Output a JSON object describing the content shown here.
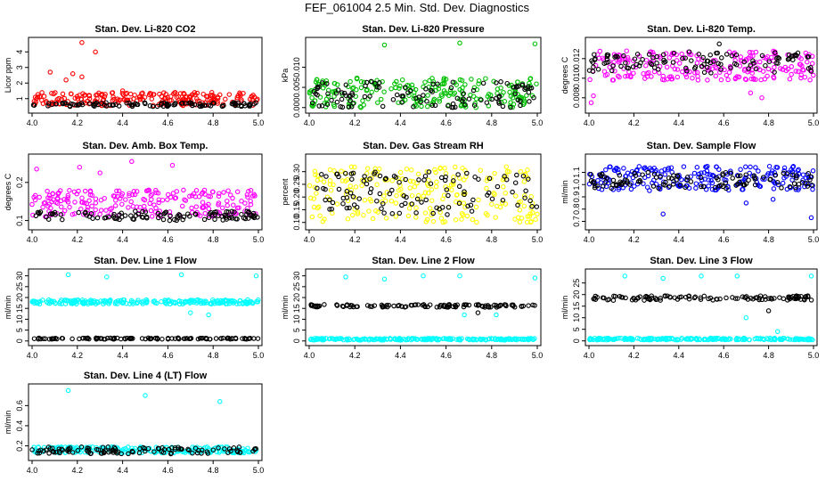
{
  "page": {
    "title": "FEF_061004  2.5 Min. Std. Dev. Diagnostics"
  },
  "chart_data": [
    {
      "type": "scatter",
      "title": "Stan. Dev. Li-820 CO2",
      "ylabel": "Licor ppm",
      "xlim": [
        4.0,
        5.0
      ],
      "ylim": [
        0.3,
        4.7
      ],
      "xticks": [
        "4.0",
        "4.2",
        "4.4",
        "4.6",
        "4.8",
        "5.0"
      ],
      "yticks": [
        1,
        2,
        3,
        4
      ],
      "series": [
        {
          "color": "#ff0000",
          "band": [
            0.55,
            1.4
          ],
          "outliers": [
            [
              4.22,
              4.6
            ],
            [
              4.08,
              2.7
            ],
            [
              4.18,
              2.6
            ],
            [
              4.22,
              2.4
            ],
            [
              4.28,
              4.0
            ],
            [
              4.15,
              2.2
            ],
            [
              4.4,
              1.5
            ]
          ]
        },
        {
          "color": "#000000",
          "band": [
            0.5,
            0.75
          ],
          "outliers": []
        }
      ]
    },
    {
      "type": "scatter",
      "title": "Stan. Dev. Li-820 Pressure",
      "ylabel": "kPa",
      "xlim": [
        4.0,
        5.0
      ],
      "ylim": [
        -0.0005,
        0.0165
      ],
      "xticks": [
        "4.0",
        "4.2",
        "4.4",
        "4.6",
        "4.8",
        "5.0"
      ],
      "yticks": [
        0.0,
        0.005,
        0.01
      ],
      "series": [
        {
          "color": "#00c000",
          "band": [
            0.0,
            0.0075
          ],
          "outliers": [
            [
              4.33,
              0.0155
            ],
            [
              4.66,
              0.016
            ],
            [
              4.99,
              0.0158
            ]
          ]
        },
        {
          "color": "#000000",
          "band": [
            0.0,
            0.0065
          ],
          "outliers": []
        }
      ]
    },
    {
      "type": "scatter",
      "title": "Stan. Dev. Li-820 Temp.",
      "ylabel": "degrees C",
      "xlim": [
        4.0,
        5.0
      ],
      "ylim": [
        0.0068,
        0.0138
      ],
      "xticks": [
        "4.0",
        "4.2",
        "4.4",
        "4.6",
        "4.8",
        "5.0"
      ],
      "yticks": [
        0.008,
        0.01,
        0.012
      ],
      "series": [
        {
          "color": "#ff00ff",
          "band": [
            0.0098,
            0.0128
          ],
          "outliers": [
            [
              4.01,
              0.0075
            ],
            [
              4.02,
              0.0082
            ],
            [
              4.72,
              0.0085
            ],
            [
              4.77,
              0.008
            ]
          ]
        },
        {
          "color": "#000000",
          "band": [
            0.0105,
            0.0127
          ],
          "outliers": [
            [
              4.58,
              0.0135
            ]
          ]
        }
      ]
    },
    {
      "type": "scatter",
      "title": "Stan. Dev. Amb. Box Temp.",
      "ylabel": "degrees C",
      "xlim": [
        4.0,
        5.0
      ],
      "ylim": [
        0.085,
        0.265
      ],
      "xticks": [
        "4.0",
        "4.2",
        "4.4",
        "4.6",
        "4.8",
        "5.0"
      ],
      "yticks": [
        0.1,
        0.2
      ],
      "series": [
        {
          "color": "#ff00ff",
          "band": [
            0.11,
            0.18
          ],
          "outliers": [
            [
              4.44,
              0.255
            ],
            [
              4.21,
              0.24
            ],
            [
              4.62,
              0.245
            ],
            [
              4.02,
              0.235
            ],
            [
              4.3,
              0.225
            ]
          ]
        },
        {
          "color": "#000000",
          "band": [
            0.1,
            0.125
          ],
          "outliers": []
        }
      ]
    },
    {
      "type": "scatter",
      "title": "Stan. Dev. Gas Stream RH",
      "ylabel": "percent",
      "xlim": [
        4.0,
        5.0
      ],
      "ylim": [
        0.085,
        0.355
      ],
      "xticks": [
        "4.0",
        "4.2",
        "4.4",
        "4.6",
        "4.8",
        "5.0"
      ],
      "yticks": [
        0.1,
        0.15,
        0.2,
        0.25,
        0.3
      ],
      "series": [
        {
          "color": "#ffff00",
          "band": [
            0.1,
            0.32
          ],
          "outliers": []
        },
        {
          "color": "#000000",
          "band": [
            0.13,
            0.3
          ],
          "outliers": []
        }
      ]
    },
    {
      "type": "scatter",
      "title": "Stan. Dev. Sample Flow",
      "ylabel": "ml/min",
      "xlim": [
        4.0,
        5.0
      ],
      "ylim": [
        0.66,
        1.22
      ],
      "xticks": [
        "4.0",
        "4.2",
        "4.4",
        "4.6",
        "4.8",
        "5.0"
      ],
      "yticks": [
        0.7,
        0.8,
        0.9,
        1.0,
        1.1
      ],
      "series": [
        {
          "color": "#0000ff",
          "band": [
            0.95,
            1.15
          ],
          "outliers": [
            [
              4.33,
              0.76
            ],
            [
              4.99,
              0.73
            ],
            [
              4.7,
              0.85
            ],
            [
              4.82,
              0.88
            ]
          ]
        },
        {
          "color": "#000000",
          "band": [
            0.97,
            1.1
          ],
          "outliers": []
        }
      ]
    },
    {
      "type": "scatter",
      "title": "Stan. Dev. Line 1 Flow",
      "ylabel": "ml/min",
      "xlim": [
        4.0,
        5.0
      ],
      "ylim": [
        -0.5,
        31.5
      ],
      "xticks": [
        "4.0",
        "4.2",
        "4.4",
        "4.6",
        "4.8",
        "5.0"
      ],
      "yticks": [
        0,
        5,
        10,
        15,
        20,
        25,
        30
      ],
      "series": [
        {
          "color": "#00ffff",
          "band": [
            17,
            19
          ],
          "outliers": [
            [
              4.16,
              30.5
            ],
            [
              4.33,
              29.5
            ],
            [
              4.66,
              30.5
            ],
            [
              4.99,
              30
            ],
            [
              4.7,
              13
            ],
            [
              4.78,
              12
            ]
          ]
        },
        {
          "color": "#000000",
          "band": [
            0.8,
            1.4
          ],
          "outliers": []
        }
      ]
    },
    {
      "type": "scatter",
      "title": "Stan. Dev. Line 2 Flow",
      "ylabel": "ml/min",
      "xlim": [
        4.0,
        5.0
      ],
      "ylim": [
        -0.5,
        31.5
      ],
      "xticks": [
        "4.0",
        "4.2",
        "4.4",
        "4.6",
        "4.8",
        "5.0"
      ],
      "yticks": [
        0,
        5,
        10,
        15,
        20,
        25,
        30
      ],
      "series": [
        {
          "color": "#00ffff",
          "band": [
            0.4,
            1.2
          ],
          "outliers": [
            [
              4.16,
              29.5
            ],
            [
              4.33,
              28.5
            ],
            [
              4.5,
              30
            ],
            [
              4.66,
              30
            ],
            [
              4.99,
              29
            ],
            [
              4.68,
              12
            ],
            [
              4.82,
              12
            ]
          ]
        },
        {
          "color": "#000000",
          "band": [
            15.5,
            16.8
          ],
          "outliers": [
            [
              4.74,
              13
            ]
          ]
        }
      ]
    },
    {
      "type": "scatter",
      "title": "Stan. Dev. Line 3 Flow",
      "ylabel": "ml/min",
      "xlim": [
        4.0,
        5.0
      ],
      "ylim": [
        -0.5,
        29.5
      ],
      "xticks": [
        "4.0",
        "4.2",
        "4.4",
        "4.6",
        "4.8",
        "5.0"
      ],
      "yticks": [
        0,
        5,
        10,
        15,
        20,
        25
      ],
      "series": [
        {
          "color": "#00ffff",
          "band": [
            0.4,
            1.2
          ],
          "outliers": [
            [
              4.16,
              28
            ],
            [
              4.33,
              27
            ],
            [
              4.5,
              28
            ],
            [
              4.66,
              28
            ],
            [
              4.99,
              28
            ],
            [
              4.7,
              10
            ],
            [
              4.84,
              4
            ]
          ]
        },
        {
          "color": "#000000",
          "band": [
            17.5,
            19.5
          ],
          "outliers": [
            [
              4.8,
              13
            ]
          ]
        }
      ]
    },
    {
      "type": "scatter",
      "title": "Stan. Dev. Line 4 (LT) Flow",
      "ylabel": "ml/min",
      "xlim": [
        4.0,
        5.0
      ],
      "ylim": [
        0.09,
        0.78
      ],
      "xticks": [
        "4.0",
        "4.2",
        "4.4",
        "4.6",
        "4.8",
        "5.0"
      ],
      "yticks": [
        0.2,
        0.4,
        0.6
      ],
      "series": [
        {
          "color": "#00ffff",
          "band": [
            0.13,
            0.19
          ],
          "outliers": [
            [
              4.16,
              0.75
            ],
            [
              4.5,
              0.7
            ],
            [
              4.83,
              0.64
            ]
          ]
        },
        {
          "color": "#000000",
          "band": [
            0.12,
            0.19
          ],
          "outliers": []
        }
      ]
    }
  ]
}
